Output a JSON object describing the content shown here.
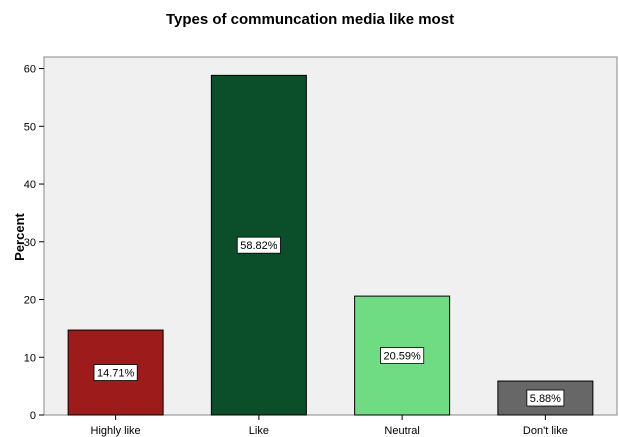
{
  "chart_data": {
    "type": "bar",
    "title": "Types of communcation media like most",
    "xlabel": "",
    "ylabel": "Percent",
    "categories": [
      "Highly like",
      "Like",
      "Neutral",
      "Don't like"
    ],
    "values": [
      14.71,
      58.82,
      20.59,
      5.88
    ],
    "data_labels": [
      "14.71%",
      "58.82%",
      "20.59%",
      "5.88%"
    ],
    "colors": [
      "#9e1b1b",
      "#0b4f2a",
      "#6fdc84",
      "#676767"
    ],
    "ylim": [
      0,
      62
    ],
    "yticks": [
      0,
      10,
      20,
      30,
      40,
      50,
      60
    ],
    "plot_background": "#f0f0f0",
    "grid": false,
    "legend": "none"
  }
}
